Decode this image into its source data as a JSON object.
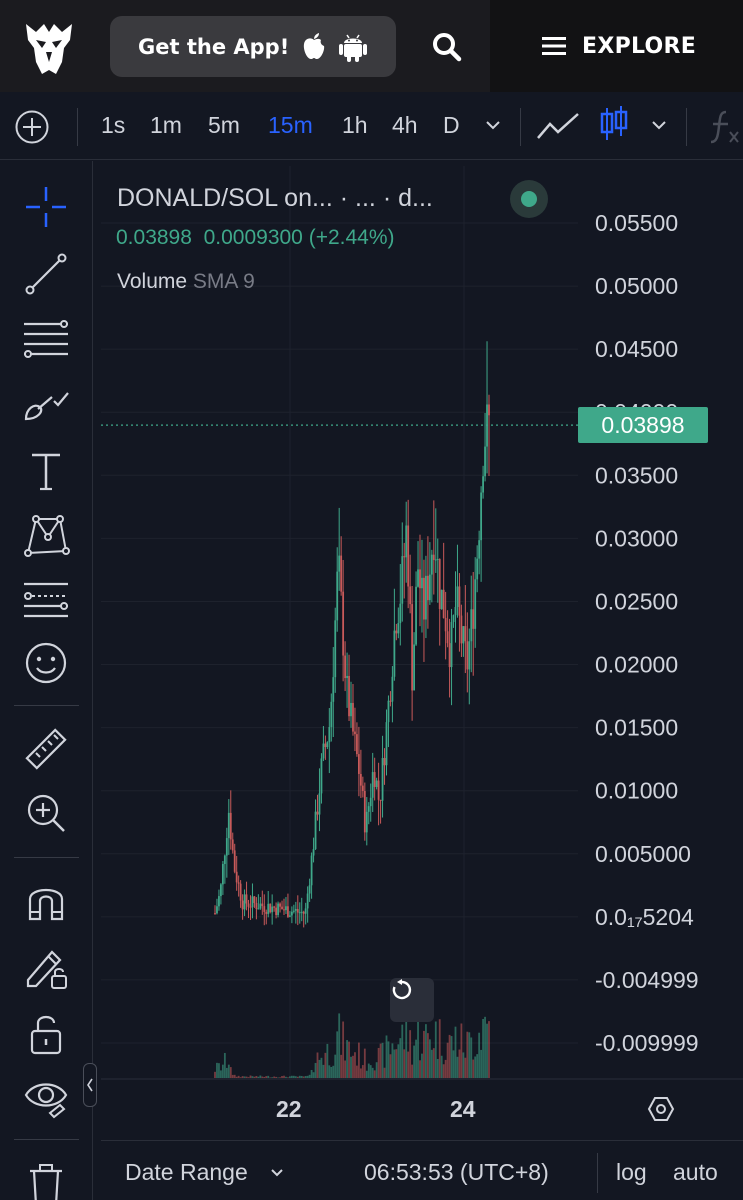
{
  "topnav": {
    "get_app_label": "Get the App!",
    "explore_label": "EXPLORE"
  },
  "toolbar": {
    "intervals": [
      "1s",
      "1m",
      "5m",
      "15m",
      "1h",
      "4h",
      "D"
    ],
    "active_interval": "15m"
  },
  "legend": {
    "title": "DONALD/SOL on...  · ...  · d...",
    "price": "0.03898",
    "change": "0.0009300 (+2.44%)",
    "volume_label": "Volume",
    "volume_sma": "SMA 9",
    "status_color": "#3fa88a"
  },
  "chart_data": {
    "type": "candlestick",
    "y_ticks": [
      "0.05500",
      "0.05000",
      "0.04500",
      "0.04000",
      "0.03500",
      "0.03000",
      "0.02500",
      "0.02000",
      "0.01500",
      "0.01000",
      "0.005000",
      "0.0₁₇5204",
      "-0.004999",
      "-0.009999"
    ],
    "y_tick_values": [
      0.055,
      0.05,
      0.045,
      0.04,
      0.035,
      0.03,
      0.025,
      0.02,
      0.015,
      0.01,
      0.005,
      0.0,
      -0.005,
      -0.01
    ],
    "x_ticks": [
      "22",
      "24"
    ],
    "last_price_label": "0.03898",
    "last_price": 0.03898,
    "price_path": [
      [
        0.0,
        0.0003
      ],
      [
        0.02,
        0.002
      ],
      [
        0.05,
        0.0085
      ],
      [
        0.07,
        0.004
      ],
      [
        0.1,
        0.0012
      ],
      [
        0.2,
        0.0008
      ],
      [
        0.3,
        0.0004
      ],
      [
        0.33,
        0.0003
      ],
      [
        0.36,
        0.006
      ],
      [
        0.39,
        0.012
      ],
      [
        0.42,
        0.0155
      ],
      [
        0.45,
        0.028
      ],
      [
        0.48,
        0.018
      ],
      [
        0.5,
        0.015
      ],
      [
        0.53,
        0.011
      ],
      [
        0.55,
        0.007
      ],
      [
        0.58,
        0.012
      ],
      [
        0.6,
        0.009
      ],
      [
        0.63,
        0.016
      ],
      [
        0.66,
        0.024
      ],
      [
        0.68,
        0.026
      ],
      [
        0.7,
        0.031
      ],
      [
        0.72,
        0.019
      ],
      [
        0.74,
        0.028
      ],
      [
        0.76,
        0.024
      ],
      [
        0.78,
        0.027
      ],
      [
        0.8,
        0.031
      ],
      [
        0.82,
        0.026
      ],
      [
        0.84,
        0.024
      ],
      [
        0.86,
        0.021
      ],
      [
        0.88,
        0.025
      ],
      [
        0.9,
        0.022
      ],
      [
        0.92,
        0.02
      ],
      [
        0.94,
        0.024
      ],
      [
        0.96,
        0.03
      ],
      [
        0.98,
        0.038
      ],
      [
        1.0,
        0.03898
      ]
    ],
    "colors": {
      "up": "#3fa88a",
      "down": "#c85a5a",
      "grid": "#1e222d"
    }
  },
  "bottombar": {
    "date_range_label": "Date Range",
    "clock": "06:53:53 (UTC+8)",
    "log_label": "log",
    "auto_label": "auto"
  }
}
